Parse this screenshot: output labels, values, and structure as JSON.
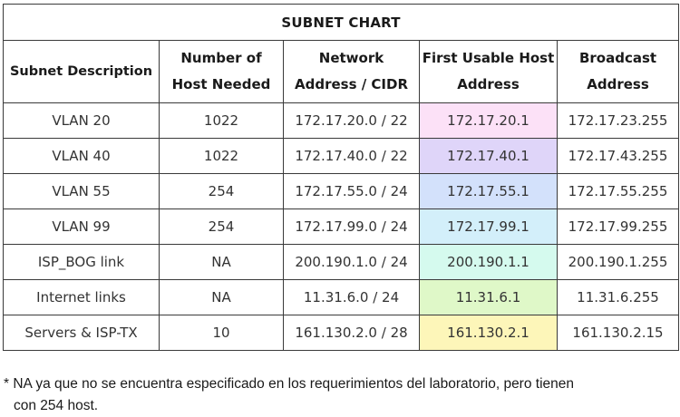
{
  "table": {
    "title": "SUBNET CHART",
    "headers": [
      {
        "line1": "Subnet Description",
        "line2": ""
      },
      {
        "line1": "Number of",
        "line2": "Host Needed"
      },
      {
        "line1": "Network",
        "line2": "Address / CIDR"
      },
      {
        "line1": "First Usable Host",
        "line2": "Address"
      },
      {
        "line1": "Broadcast",
        "line2": "Address"
      }
    ],
    "rows": [
      {
        "description": "VLAN 20",
        "hosts": "1022",
        "network": "172.17.20.0 / 22",
        "first_host": "172.17.20.1",
        "broadcast": "172.17.23.255",
        "highlight": "#fce1f7"
      },
      {
        "description": "VLAN 40",
        "hosts": "1022",
        "network": "172.17.40.0 / 22",
        "first_host": "172.17.40.1",
        "broadcast": "172.17.43.255",
        "highlight": "#dfd5f9"
      },
      {
        "description": "VLAN 55",
        "hosts": "254",
        "network": "172.17.55.0 / 24",
        "first_host": "172.17.55.1",
        "broadcast": "172.17.55.255",
        "highlight": "#d3e1fb"
      },
      {
        "description": "VLAN 99",
        "hosts": "254",
        "network": "172.17.99.0 / 24",
        "first_host": "172.17.99.1",
        "broadcast": "172.17.99.255",
        "highlight": "#d3effa"
      },
      {
        "description": "ISP_BOG link",
        "hosts": "NA",
        "network": "200.190.1.0 / 24",
        "first_host": "200.190.1.1",
        "broadcast": "200.190.1.255",
        "highlight": "#d5faee"
      },
      {
        "description": "Internet links",
        "hosts": "NA",
        "network": "11.31.6.0 / 24",
        "first_host": "11.31.6.1",
        "broadcast": "11.31.6.255",
        "highlight": "#dff8c8"
      },
      {
        "description": "Servers & ISP-TX",
        "hosts": "10",
        "network": "161.130.2.0 / 28",
        "first_host": "161.130.2.1",
        "broadcast": "161.130.2.15",
        "highlight": "#fdf6b9"
      }
    ]
  },
  "footnote": {
    "line1": "* NA ya que no se encuentra especificado en los requerimientos del laboratorio, pero tienen",
    "line2": "con 254 host."
  }
}
